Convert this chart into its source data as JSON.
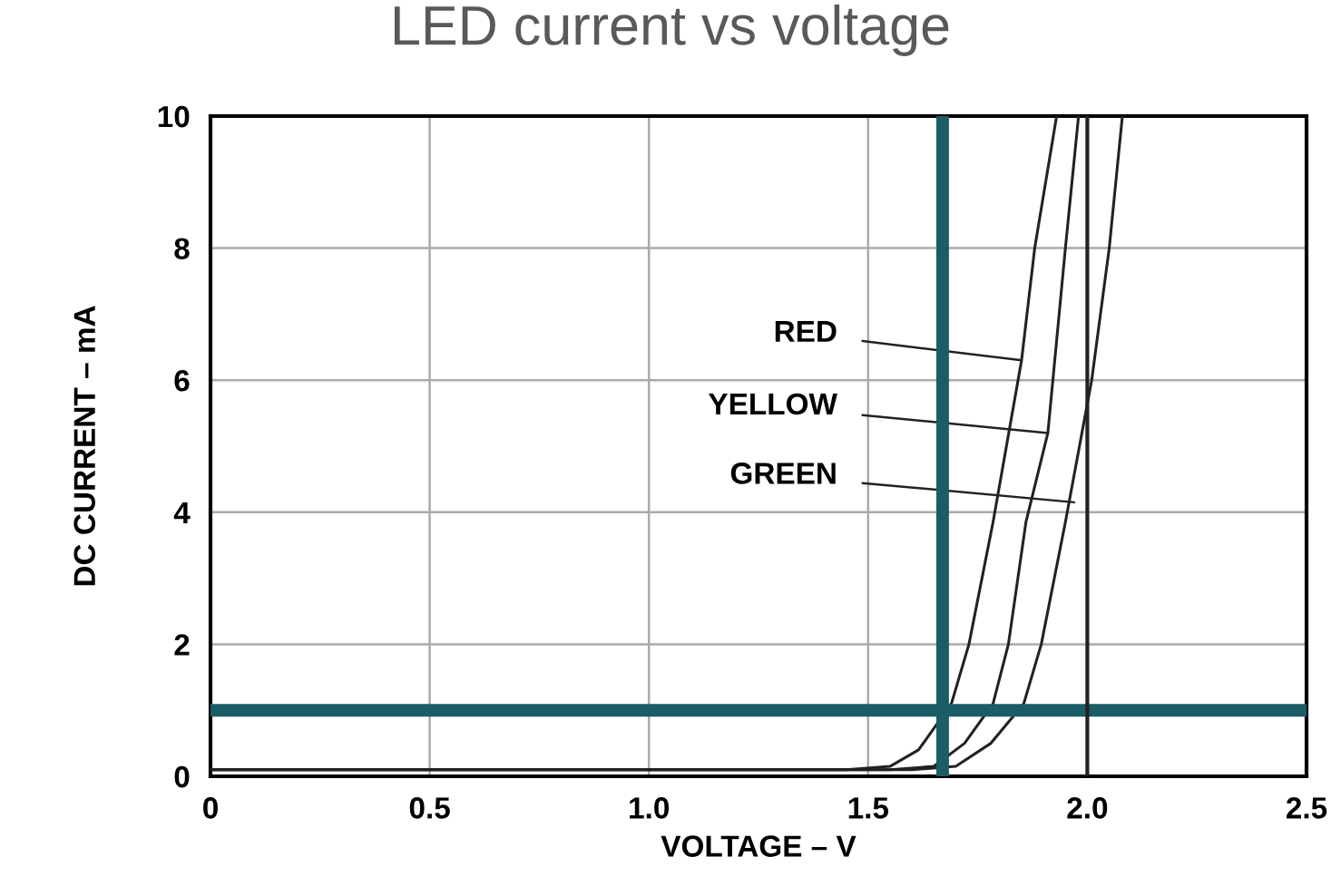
{
  "chart_data": {
    "type": "line",
    "title": "LED current vs voltage",
    "xlabel": "VOLTAGE – V",
    "ylabel": "DC CURRENT – mA",
    "xlim": [
      0,
      2.5
    ],
    "ylim": [
      0,
      10
    ],
    "xticks": [
      0,
      0.5,
      {
        "value": 1,
        "label": "1.0"
      },
      1.5,
      {
        "value": 2,
        "label": "2.0"
      },
      2.5
    ],
    "yticks": [
      0,
      2,
      4,
      6,
      8,
      10
    ],
    "grid": true,
    "legend": false,
    "series": [
      {
        "color": "#222222",
        "x": [
          0,
          1.45,
          1.55,
          1.615,
          1.69,
          1.73,
          1.785,
          1.85,
          1.88,
          1.93
        ],
        "values": [
          0.1,
          0.1,
          0.15,
          0.4,
          1.1,
          2.0,
          3.85,
          6.3,
          8.0,
          10
        ]
      },
      {
        "color": "#222222",
        "x": [
          0,
          1.55,
          1.65,
          1.72,
          1.785,
          1.82,
          1.86,
          1.91,
          1.95,
          1.98
        ],
        "values": [
          0.1,
          0.1,
          0.15,
          0.5,
          1.1,
          2.0,
          3.85,
          5.2,
          8.0,
          10
        ]
      },
      {
        "color": "#222222",
        "x": [
          0,
          1.6,
          1.7,
          1.78,
          1.855,
          1.895,
          1.95,
          2.01,
          2.05,
          2.08
        ],
        "values": [
          0.1,
          0.1,
          0.15,
          0.5,
          1.1,
          2.0,
          3.85,
          6.0,
          8.0,
          10
        ]
      }
    ],
    "annotations": [
      {
        "text": "RED",
        "x": 1.85,
        "y": 6.3
      },
      {
        "text": "YELLOW",
        "x": 1.91,
        "y": 5.2
      },
      {
        "text": "GREEN",
        "x": 1.97,
        "y": 4.15
      }
    ],
    "ref_lines": [
      {
        "axis": "y",
        "value": 1,
        "color": "#1b5c66"
      },
      {
        "axis": "x",
        "value": 1.67,
        "color": "#1b5c66"
      },
      {
        "axis": "x",
        "value": 2.0,
        "color": "#222222"
      }
    ]
  }
}
